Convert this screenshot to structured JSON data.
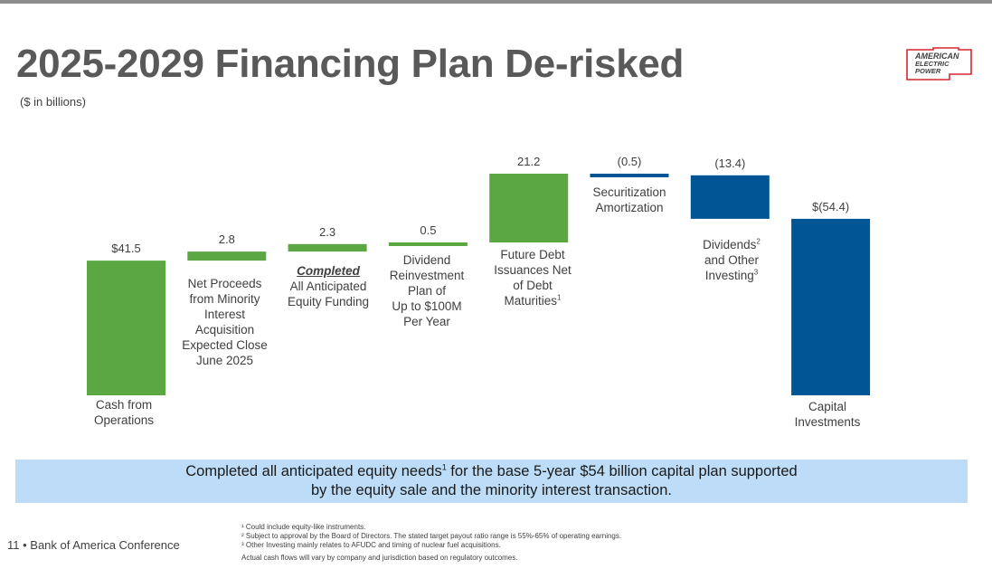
{
  "header": {
    "title": "2025-2029 Financing Plan De-risked",
    "subtitle": "($ in billions)",
    "logo_line1": "AMERICAN",
    "logo_line2": "ELECTRIC",
    "logo_line3": "POWER"
  },
  "colors": {
    "green": "#5ba744",
    "blue": "#005595",
    "banner": "#bcdcf7",
    "logo_red": "#d7262e"
  },
  "chart_data": {
    "type": "bar",
    "subtype": "waterfall",
    "unit": "$ in billions",
    "categories": [
      "Cash from Operations",
      "Net Proceeds from Minority Interest Acquisition Expected Close June 2025",
      "Completed All Anticipated Equity Funding",
      "Dividend Reinvestment Plan of Up to $100M Per Year",
      "Future Debt Issuances Net of Debt Maturities",
      "Securitization Amortization",
      "Dividends and Other Investing",
      "Capital Investments"
    ],
    "values": [
      41.5,
      2.8,
      2.3,
      0.5,
      21.2,
      -0.5,
      -13.4,
      -54.4
    ],
    "kinds": [
      "source",
      "source",
      "source",
      "source",
      "source",
      "use",
      "use",
      "total"
    ],
    "value_labels": [
      "$41.5",
      "2.8",
      "2.3",
      "0.5",
      "21.2",
      "(0.5)",
      "(13.4)",
      "$(54.4)"
    ],
    "ylim": [
      0,
      68.3
    ],
    "grid": false,
    "legend": "none"
  },
  "labels": {
    "cfo": "Cash from\nOperations",
    "minority": "Net Proceeds\nfrom Minority\nInterest\nAcquisition\nExpected Close\nJune 2025",
    "equity_em": "Completed",
    "equity": "All Anticipated\nEquity Funding",
    "drip": "Dividend\nReinvestment\nPlan of\nUp to $100M\nPer Year",
    "debt": "Future Debt\nIssuances Net\nof Debt\nMaturities",
    "debt_sup": "1",
    "securitization": "Securitization\nAmortization",
    "div_a": "Dividends",
    "div_a_sup": "2",
    "div_b": "and Other",
    "div_c": "Investing",
    "div_c_sup": "3",
    "capex": "Capital\nInvestments"
  },
  "banner": {
    "text_a": "Completed all anticipated equity needs",
    "sup": "1",
    "text_b": " for the base 5-year $54 billion capital plan supported",
    "text_c": "by the equity sale and the minority interest transaction."
  },
  "footer": {
    "page": "11 • Bank of America Conference",
    "fn1": "¹ Could include equity-like instruments.",
    "fn2": "² Subject to approval by the Board of Directors. The stated target payout ratio range is 55%-65% of operating earnings.",
    "fn3": "³ Other Investing mainly relates to AFUDC and timing of nuclear fuel acquisitions.",
    "note": "Actual cash flows will vary by company and jurisdiction based on regulatory outcomes."
  }
}
